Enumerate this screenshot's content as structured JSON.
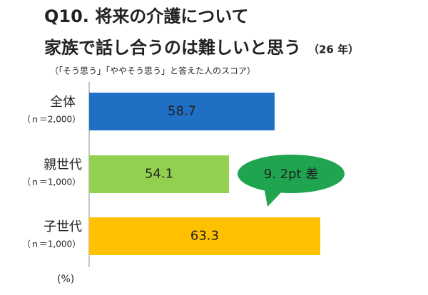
{
  "chart_data": {
    "type": "bar",
    "orientation": "horizontal",
    "title": "Q10.  将来の介護について",
    "title_line2": "家族で話し合うのは難しいと思う",
    "title_note": "（26 年）",
    "subtitle": "（「そう思う」「ややそう思う」と答えた人のスコア）",
    "categories": [
      "全体",
      "親世代",
      "子世代"
    ],
    "sample_sizes": [
      "（ｎ＝2,000）",
      "（ｎ＝1,000）",
      "（ｎ＝1,000）"
    ],
    "values": [
      58.7,
      54.1,
      63.3
    ],
    "colors": [
      "#1f6fc5",
      "#92d050",
      "#ffc000"
    ],
    "xlim": [
      40,
      70
    ],
    "annotation": "9. 2pt 差",
    "annotation_color": "#1fa550",
    "unit_label": "(%)"
  }
}
